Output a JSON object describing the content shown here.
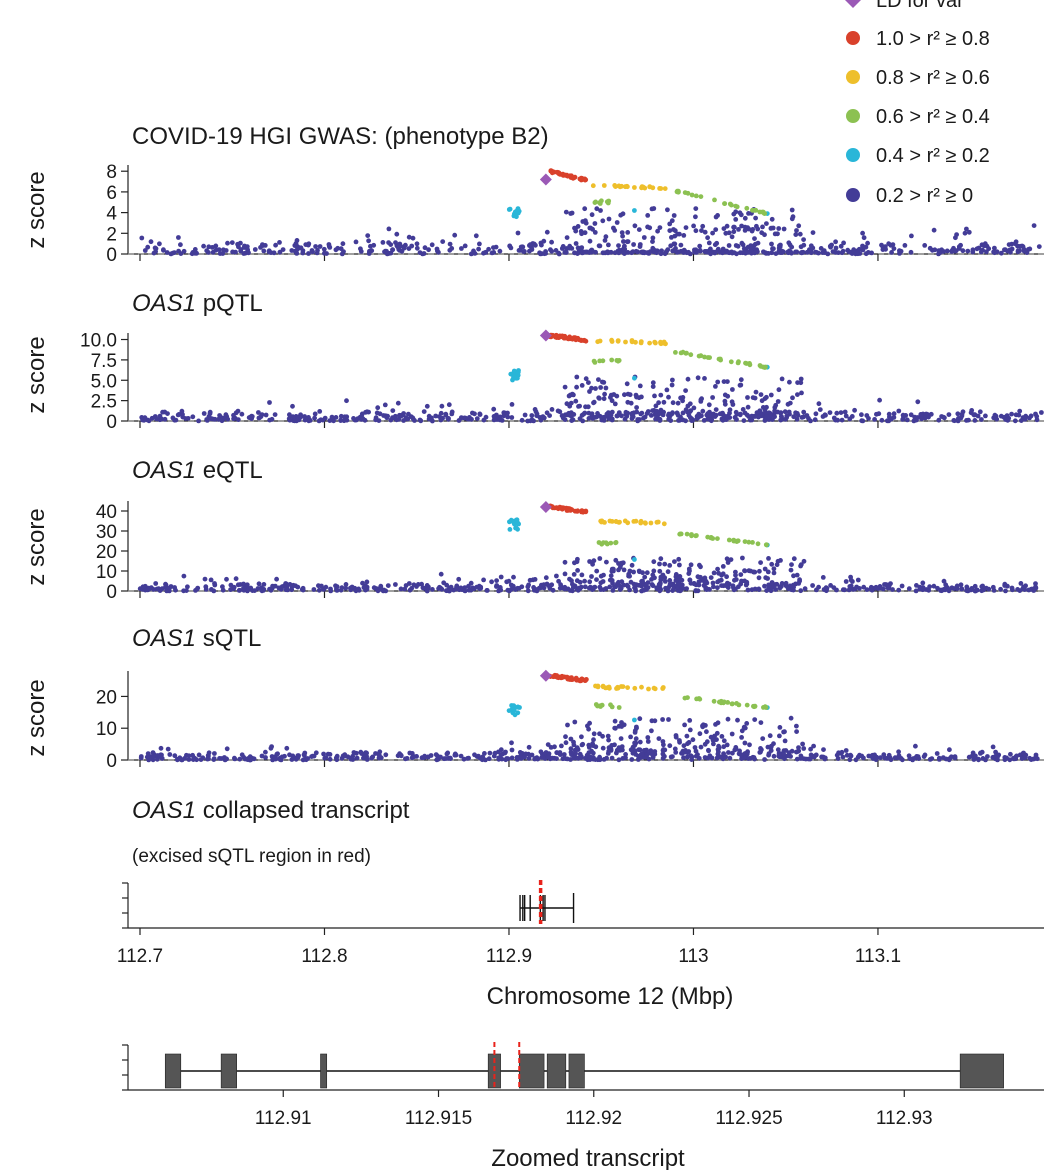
{
  "legend": {
    "items": [
      {
        "key": "lead",
        "label": "LD for var",
        "color": "#9b59b6",
        "shape": "diamond"
      },
      {
        "key": "r08",
        "label": "1.0 > r² ≥ 0.8",
        "color": "#d9412b"
      },
      {
        "key": "r06",
        "label": "0.8 > r² ≥ 0.6",
        "color": "#eebf2b"
      },
      {
        "key": "r04",
        "label": "0.6 > r² ≥ 0.4",
        "color": "#8cc152"
      },
      {
        "key": "r02",
        "label": "0.4 > r² ≥ 0.2",
        "color": "#29b6d8"
      },
      {
        "key": "r00",
        "label": "0.2 > r² ≥ 0",
        "color": "#433c97"
      }
    ]
  },
  "chart_data": [
    {
      "type": "scatter",
      "id": "gwas",
      "title": "COVID-19 HGI GWAS: (phenotype B2)",
      "title_italic": "",
      "title_rest": "COVID-19 HGI GWAS: (phenotype B2)",
      "ylabel": "z score",
      "xlim": [
        112.7,
        113.19
      ],
      "ylim": [
        0,
        8.6
      ],
      "yticks": [
        0,
        2,
        4,
        6,
        8
      ],
      "ytick_labels": [
        "0",
        "2",
        "4",
        "6",
        "8"
      ],
      "xticks": [
        112.7,
        112.8,
        112.9,
        113.0,
        113.1
      ],
      "profile": {
        "bg": 1.0,
        "blue": [
          0.2,
          2.5,
          4.0
        ],
        "cyan": 4.0,
        "lead": 7.2,
        "red": [
          [
            112.922,
            8.0
          ],
          [
            112.942,
            7.1
          ]
        ],
        "yellow": [
          [
            112.945,
            6.6
          ],
          [
            112.985,
            6.4
          ]
        ],
        "green": [
          [
            112.99,
            6.1
          ],
          [
            113.04,
            3.9
          ]
        ],
        "green_low": 5.0,
        "green_low_x": [
          112.946,
          112.955
        ]
      }
    },
    {
      "type": "scatter",
      "id": "pqtl",
      "title": "OAS1 pQTL",
      "title_italic": "OAS1",
      "title_rest": " pQTL",
      "ylabel": "z score",
      "xlim": [
        112.7,
        113.19
      ],
      "ylim": [
        0,
        10.8
      ],
      "yticks": [
        0,
        2.5,
        5,
        7.5,
        10
      ],
      "ytick_labels": [
        "0",
        "2.5",
        "5.0",
        "7.5",
        "10.0"
      ],
      "xticks": [
        112.7,
        112.8,
        112.9,
        113.0,
        113.1
      ],
      "profile": {
        "bg": 1.0,
        "blue": [
          1.0,
          3.0,
          5.0
        ],
        "cyan": 5.6,
        "lead": 10.5,
        "red": [
          [
            112.922,
            10.5
          ],
          [
            112.942,
            9.9
          ]
        ],
        "yellow": [
          [
            112.945,
            9.9
          ],
          [
            112.985,
            9.6
          ]
        ],
        "green": [
          [
            112.99,
            8.5
          ],
          [
            113.04,
            6.6
          ]
        ],
        "green_low": 7.3,
        "green_low_x": [
          112.946,
          112.96
        ]
      }
    },
    {
      "type": "scatter",
      "id": "eqtl",
      "title": "OAS1 eQTL",
      "title_italic": "OAS1",
      "title_rest": " eQTL",
      "ylabel": "z score",
      "xlim": [
        112.7,
        113.19
      ],
      "ylim": [
        0,
        45
      ],
      "yticks": [
        0,
        10,
        20,
        30,
        40
      ],
      "ytick_labels": [
        "0",
        "10",
        "20",
        "30",
        "40"
      ],
      "xticks": [
        112.7,
        112.8,
        112.9,
        113.0,
        113.1
      ],
      "profile": {
        "bg": 3.0,
        "blue": [
          5.0,
          10.0,
          15.0
        ],
        "cyan": 32.0,
        "lead": 42.0,
        "red": [
          [
            112.922,
            42.0
          ],
          [
            112.942,
            39.5
          ]
        ],
        "yellow": [
          [
            112.945,
            35.0
          ],
          [
            112.985,
            34.0
          ]
        ],
        "green": [
          [
            112.99,
            29.0
          ],
          [
            113.04,
            23.0
          ]
        ],
        "green_low": 24.0,
        "green_low_x": [
          112.946,
          112.96
        ]
      }
    },
    {
      "type": "scatter",
      "id": "sqtl",
      "title": "OAS1 sQTL",
      "title_italic": "OAS1",
      "title_rest": " sQTL",
      "ylabel": "z score",
      "xlim": [
        112.7,
        113.19
      ],
      "ylim": [
        0,
        28
      ],
      "yticks": [
        0,
        10,
        20
      ],
      "ytick_labels": [
        "0",
        "10",
        "20"
      ],
      "xticks": [
        112.7,
        112.8,
        112.9,
        113.0,
        113.1
      ],
      "profile": {
        "bg": 2.0,
        "blue": [
          3.0,
          7.0,
          12.0
        ],
        "cyan": 15.5,
        "lead": 26.5,
        "red": [
          [
            112.922,
            26.5
          ],
          [
            112.942,
            25.0
          ]
        ],
        "yellow": [
          [
            112.945,
            23.0
          ],
          [
            112.985,
            22.5
          ]
        ],
        "green": [
          [
            112.99,
            20.0
          ],
          [
            113.04,
            16.5
          ]
        ],
        "green_low": 17.0,
        "green_low_x": [
          112.946,
          112.96
        ]
      }
    },
    {
      "type": "gene-track",
      "id": "transcript",
      "title": "OAS1 collapsed transcript",
      "title_italic": "OAS1",
      "title_rest": " collapsed transcript",
      "subtitle": "(excised sQTL region in red)",
      "xlabel": "Chromosome 12 (Mbp)",
      "xlim": [
        112.7,
        113.19
      ],
      "xticks": [
        112.7,
        112.8,
        112.9,
        113.0,
        113.1
      ],
      "xtick_labels": [
        "112.7",
        "112.8",
        "112.9",
        "113",
        "113.1"
      ],
      "gene_span": [
        112.906,
        112.935
      ],
      "exon_marks": [
        112.906,
        112.9075,
        112.9085,
        112.9115,
        112.917,
        112.9185,
        112.9195
      ],
      "excised": [
        112.9168,
        112.9175
      ]
    },
    {
      "type": "gene-track",
      "id": "zoom",
      "xlabel": "Zoomed transcript",
      "xlim": [
        112.905,
        112.9345
      ],
      "xticks": [
        112.91,
        112.915,
        112.92,
        112.925,
        112.93
      ],
      "xtick_labels": [
        "112.91",
        "112.915",
        "112.92",
        "112.925",
        "112.93"
      ],
      "gene_span": [
        112.9062,
        112.9332
      ],
      "exons": [
        [
          112.9062,
          112.9067
        ],
        [
          112.908,
          112.9085
        ],
        [
          112.9112,
          112.9114
        ],
        [
          112.9166,
          112.917
        ],
        [
          112.9176,
          112.9184
        ],
        [
          112.9185,
          112.9191
        ],
        [
          112.9192,
          112.9197
        ],
        [
          112.9318,
          112.9332
        ]
      ],
      "excised": [
        112.9168,
        112.9176
      ]
    }
  ]
}
